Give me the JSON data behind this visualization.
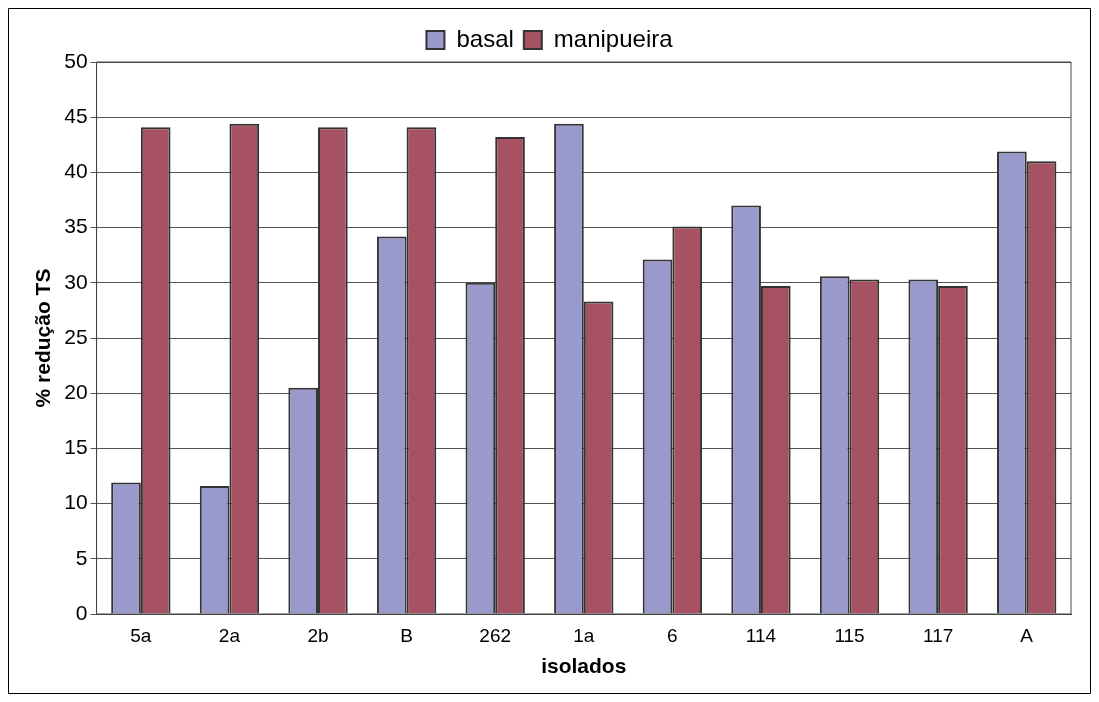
{
  "chart_data": {
    "type": "bar",
    "xlabel": "isolados",
    "ylabel": "% redução TS",
    "categories": [
      "5a",
      "2a",
      "2b",
      "B",
      "262",
      "1a",
      "6",
      "114",
      "115",
      "117",
      "A"
    ],
    "series": [
      {
        "name": "basal",
        "color": "#9999cc",
        "values": [
          11.9,
          11.6,
          20.5,
          34.2,
          30.0,
          44.4,
          32.1,
          37.0,
          30.6,
          30.3,
          41.9
        ]
      },
      {
        "name": "manipueira",
        "color": "#a65263",
        "values": [
          44.1,
          44.4,
          44.1,
          44.1,
          43.2,
          28.3,
          35.1,
          29.7,
          30.3,
          29.7,
          41.0
        ]
      }
    ],
    "ylim": [
      0,
      50
    ],
    "yticks": [
      0,
      5,
      10,
      15,
      20,
      25,
      30,
      35,
      40,
      45,
      50
    ],
    "grid": "y",
    "legend": "top"
  }
}
